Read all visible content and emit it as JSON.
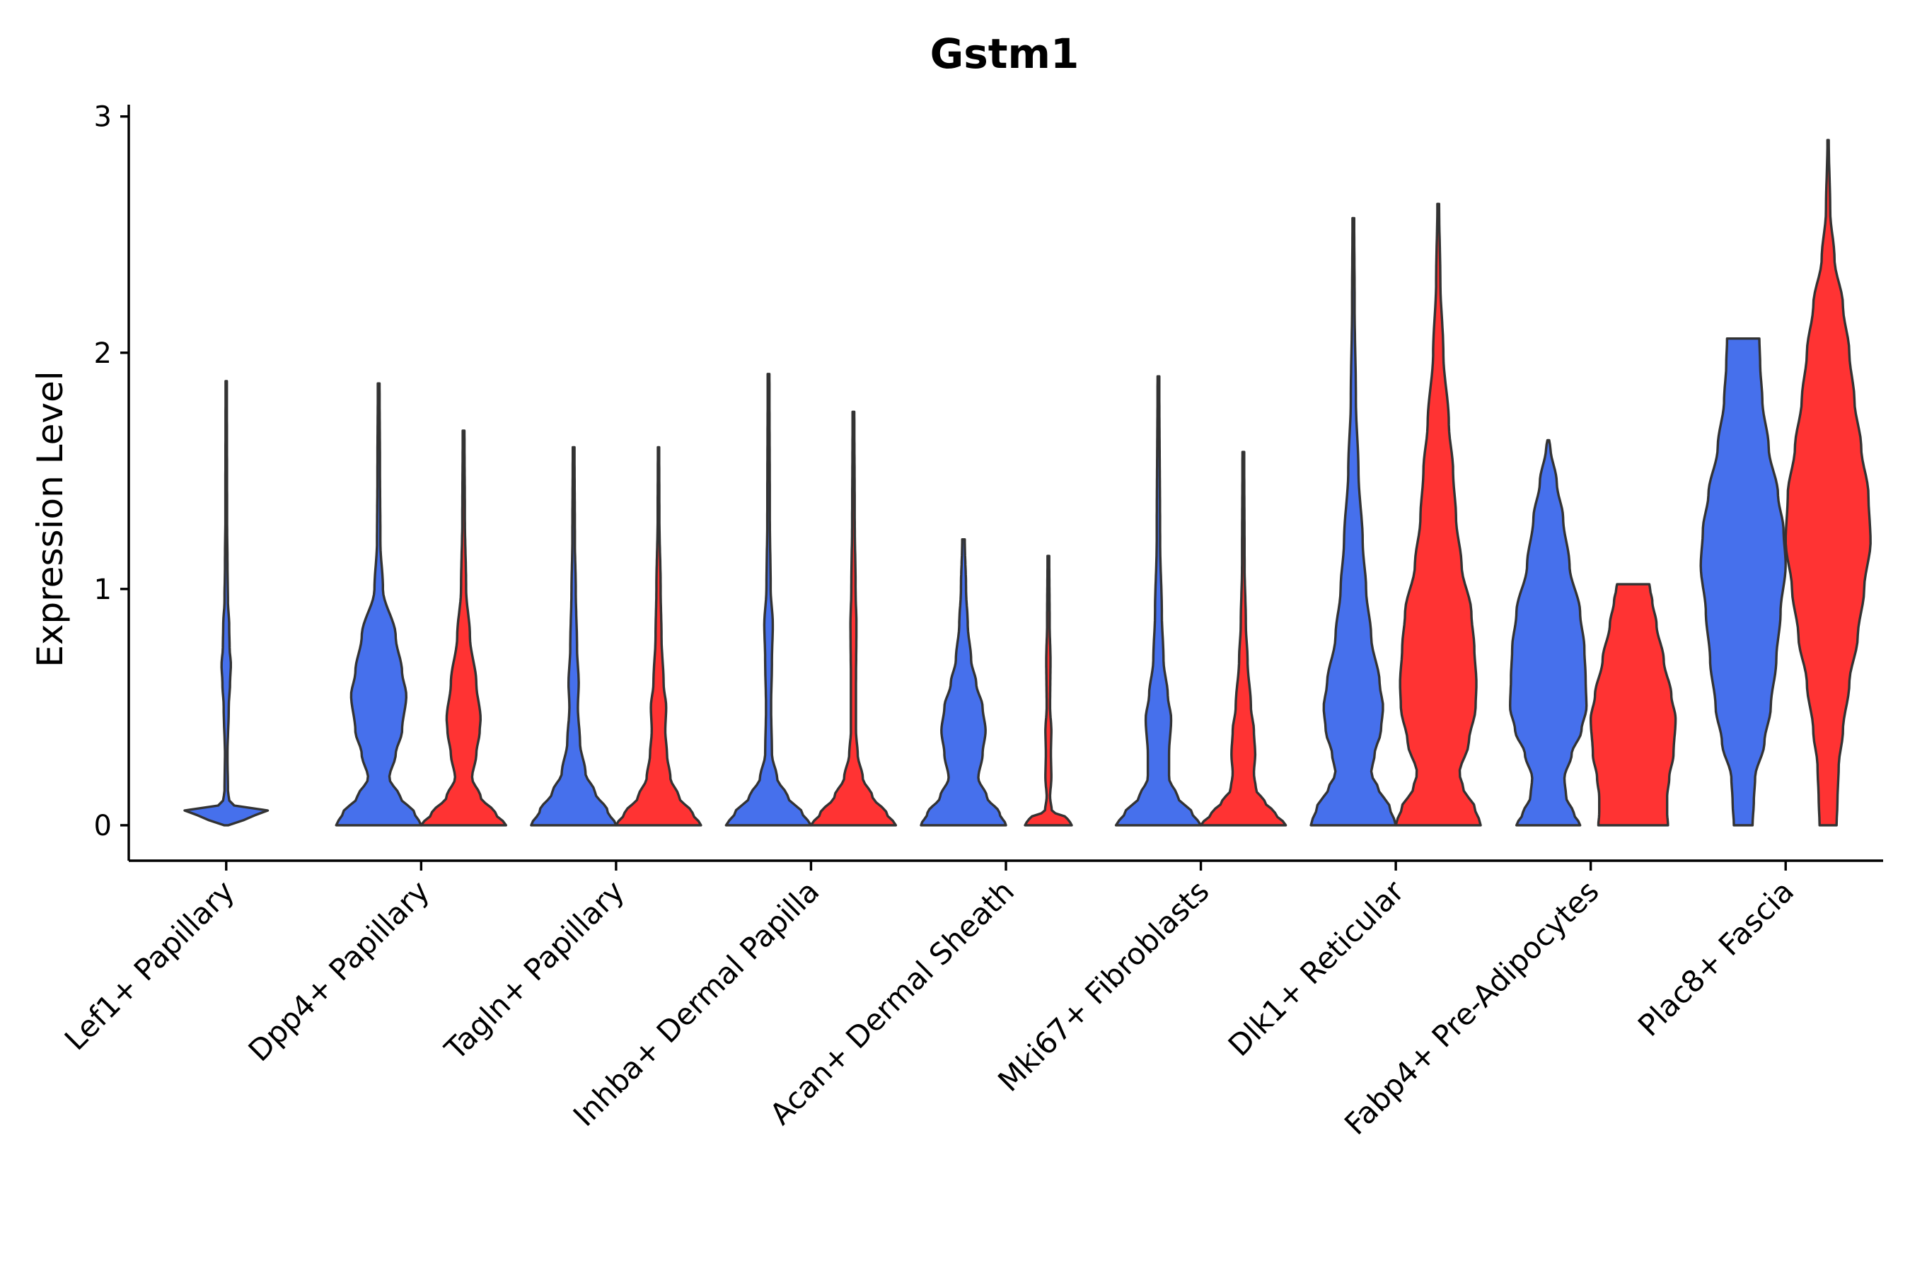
{
  "chart_data": {
    "type": "violin",
    "title": "Gstm1",
    "xlabel": "",
    "ylabel": "Expression Level",
    "ylim": [
      -0.15,
      3.05
    ],
    "yticks": [
      0,
      1,
      2,
      3
    ],
    "grid": false,
    "legend": "none",
    "colors": {
      "blue": "#4670EC",
      "red": "#FF3333"
    },
    "groups": [
      {
        "category": "Lef1+ Papillary",
        "violins": [
          {
            "series": "blue",
            "min": 0,
            "max": 1.88,
            "profile": [
              [
                0,
                0.05
              ],
              [
                0.03,
                0.5
              ],
              [
                0.06,
                1.0
              ],
              [
                0.09,
                0.08
              ],
              [
                0.15,
                0.04
              ],
              [
                0.3,
                0.03
              ],
              [
                0.5,
                0.06
              ],
              [
                0.6,
                0.09
              ],
              [
                0.68,
                0.11
              ],
              [
                0.75,
                0.08
              ],
              [
                0.85,
                0.07
              ],
              [
                0.95,
                0.04
              ],
              [
                1.1,
                0.03
              ],
              [
                1.3,
                0.02
              ],
              [
                1.88,
                0.015
              ]
            ]
          }
        ]
      },
      {
        "category": "Dpp4+ Papillary",
        "violins": [
          {
            "series": "blue",
            "min": 0,
            "max": 1.87,
            "profile": [
              [
                0,
                1.0
              ],
              [
                0.05,
                0.85
              ],
              [
                0.12,
                0.5
              ],
              [
                0.2,
                0.25
              ],
              [
                0.3,
                0.4
              ],
              [
                0.4,
                0.55
              ],
              [
                0.55,
                0.65
              ],
              [
                0.65,
                0.55
              ],
              [
                0.8,
                0.4
              ],
              [
                1.0,
                0.1
              ],
              [
                1.2,
                0.04
              ],
              [
                1.5,
                0.03
              ],
              [
                1.87,
                0.02
              ]
            ]
          },
          {
            "series": "red",
            "min": 0,
            "max": 1.67,
            "profile": [
              [
                0,
                1.0
              ],
              [
                0.05,
                0.75
              ],
              [
                0.12,
                0.4
              ],
              [
                0.2,
                0.2
              ],
              [
                0.3,
                0.3
              ],
              [
                0.4,
                0.38
              ],
              [
                0.45,
                0.4
              ],
              [
                0.6,
                0.3
              ],
              [
                0.8,
                0.15
              ],
              [
                1.0,
                0.06
              ],
              [
                1.3,
                0.03
              ],
              [
                1.67,
                0.02
              ]
            ]
          }
        ]
      },
      {
        "category": "Tagln+ Papillary",
        "violins": [
          {
            "series": "blue",
            "min": 0,
            "max": 1.6,
            "profile": [
              [
                0,
                1.0
              ],
              [
                0.06,
                0.8
              ],
              [
                0.14,
                0.5
              ],
              [
                0.22,
                0.28
              ],
              [
                0.35,
                0.15
              ],
              [
                0.5,
                0.1
              ],
              [
                0.6,
                0.12
              ],
              [
                0.75,
                0.08
              ],
              [
                1.0,
                0.05
              ],
              [
                1.2,
                0.03
              ],
              [
                1.6,
                0.02
              ]
            ]
          },
          {
            "series": "red",
            "min": 0,
            "max": 1.6,
            "profile": [
              [
                0,
                1.0
              ],
              [
                0.05,
                0.8
              ],
              [
                0.12,
                0.48
              ],
              [
                0.2,
                0.28
              ],
              [
                0.3,
                0.2
              ],
              [
                0.4,
                0.16
              ],
              [
                0.5,
                0.18
              ],
              [
                0.6,
                0.12
              ],
              [
                0.8,
                0.07
              ],
              [
                1.0,
                0.05
              ],
              [
                1.3,
                0.02
              ],
              [
                1.6,
                0.015
              ]
            ]
          }
        ]
      },
      {
        "category": "Inhba+ Dermal Papilla",
        "violins": [
          {
            "series": "blue",
            "min": 0,
            "max": 1.91,
            "profile": [
              [
                0,
                1.0
              ],
              [
                0.05,
                0.8
              ],
              [
                0.12,
                0.45
              ],
              [
                0.2,
                0.2
              ],
              [
                0.3,
                0.08
              ],
              [
                0.5,
                0.06
              ],
              [
                0.7,
                0.08
              ],
              [
                0.85,
                0.1
              ],
              [
                1.0,
                0.05
              ],
              [
                1.3,
                0.03
              ],
              [
                1.91,
                0.02
              ]
            ]
          },
          {
            "series": "red",
            "min": 0,
            "max": 1.75,
            "profile": [
              [
                0,
                1.0
              ],
              [
                0.05,
                0.78
              ],
              [
                0.12,
                0.45
              ],
              [
                0.2,
                0.22
              ],
              [
                0.3,
                0.1
              ],
              [
                0.4,
                0.06
              ],
              [
                0.6,
                0.06
              ],
              [
                0.85,
                0.07
              ],
              [
                1.0,
                0.05
              ],
              [
                1.3,
                0.03
              ],
              [
                1.75,
                0.02
              ]
            ]
          }
        ]
      },
      {
        "category": "Acan+ Dermal Sheath",
        "violins": [
          {
            "series": "blue",
            "min": 0,
            "max": 1.21,
            "profile": [
              [
                0,
                1.0
              ],
              [
                0.05,
                0.85
              ],
              [
                0.12,
                0.55
              ],
              [
                0.2,
                0.35
              ],
              [
                0.3,
                0.45
              ],
              [
                0.4,
                0.52
              ],
              [
                0.5,
                0.45
              ],
              [
                0.6,
                0.3
              ],
              [
                0.7,
                0.18
              ],
              [
                0.85,
                0.1
              ],
              [
                1.0,
                0.06
              ],
              [
                1.21,
                0.03
              ]
            ]
          },
          {
            "series": "red",
            "min": 0,
            "max": 1.14,
            "profile": [
              [
                0,
                0.55
              ],
              [
                0.03,
                0.45
              ],
              [
                0.06,
                0.08
              ],
              [
                0.12,
                0.04
              ],
              [
                0.2,
                0.07
              ],
              [
                0.3,
                0.06
              ],
              [
                0.4,
                0.07
              ],
              [
                0.5,
                0.04
              ],
              [
                0.7,
                0.05
              ],
              [
                0.85,
                0.03
              ],
              [
                1.14,
                0.02
              ]
            ]
          }
        ]
      },
      {
        "category": "Mki67+ Fibroblasts",
        "violins": [
          {
            "series": "blue",
            "min": 0,
            "max": 1.9,
            "profile": [
              [
                0,
                1.0
              ],
              [
                0.05,
                0.8
              ],
              [
                0.12,
                0.45
              ],
              [
                0.2,
                0.25
              ],
              [
                0.3,
                0.25
              ],
              [
                0.45,
                0.3
              ],
              [
                0.55,
                0.22
              ],
              [
                0.7,
                0.12
              ],
              [
                0.9,
                0.08
              ],
              [
                1.2,
                0.04
              ],
              [
                1.9,
                0.02
              ]
            ]
          },
          {
            "series": "red",
            "min": 0,
            "max": 1.58,
            "profile": [
              [
                0,
                1.0
              ],
              [
                0.05,
                0.75
              ],
              [
                0.1,
                0.5
              ],
              [
                0.15,
                0.3
              ],
              [
                0.22,
                0.25
              ],
              [
                0.3,
                0.28
              ],
              [
                0.4,
                0.25
              ],
              [
                0.5,
                0.18
              ],
              [
                0.7,
                0.1
              ],
              [
                0.85,
                0.06
              ],
              [
                1.1,
                0.03
              ],
              [
                1.58,
                0.02
              ]
            ]
          }
        ]
      },
      {
        "category": "Dlk1+ Reticular",
        "violins": [
          {
            "series": "blue",
            "min": 0,
            "max": 2.57,
            "profile": [
              [
                0,
                1.0
              ],
              [
                0.08,
                0.85
              ],
              [
                0.15,
                0.6
              ],
              [
                0.22,
                0.42
              ],
              [
                0.3,
                0.5
              ],
              [
                0.4,
                0.65
              ],
              [
                0.5,
                0.7
              ],
              [
                0.6,
                0.62
              ],
              [
                0.8,
                0.42
              ],
              [
                1.0,
                0.3
              ],
              [
                1.2,
                0.22
              ],
              [
                1.5,
                0.12
              ],
              [
                1.8,
                0.06
              ],
              [
                2.2,
                0.03
              ],
              [
                2.57,
                0.02
              ]
            ]
          },
          {
            "series": "red",
            "min": 0,
            "max": 2.63,
            "profile": [
              [
                0,
                1.0
              ],
              [
                0.08,
                0.85
              ],
              [
                0.15,
                0.6
              ],
              [
                0.22,
                0.5
              ],
              [
                0.35,
                0.72
              ],
              [
                0.5,
                0.88
              ],
              [
                0.6,
                0.9
              ],
              [
                0.75,
                0.85
              ],
              [
                0.9,
                0.78
              ],
              [
                1.1,
                0.55
              ],
              [
                1.3,
                0.42
              ],
              [
                1.5,
                0.35
              ],
              [
                1.7,
                0.25
              ],
              [
                2.0,
                0.12
              ],
              [
                2.3,
                0.05
              ],
              [
                2.63,
                0.02
              ]
            ]
          }
        ]
      },
      {
        "category": "Fabp4+ Pre-Adipocytes",
        "violins": [
          {
            "series": "blue",
            "min": 0,
            "max": 1.63,
            "profile": [
              [
                0,
                0.75
              ],
              [
                0.05,
                0.6
              ],
              [
                0.12,
                0.42
              ],
              [
                0.2,
                0.38
              ],
              [
                0.3,
                0.55
              ],
              [
                0.4,
                0.78
              ],
              [
                0.5,
                0.9
              ],
              [
                0.62,
                0.88
              ],
              [
                0.75,
                0.85
              ],
              [
                0.9,
                0.75
              ],
              [
                1.1,
                0.5
              ],
              [
                1.3,
                0.35
              ],
              [
                1.45,
                0.2
              ],
              [
                1.6,
                0.05
              ],
              [
                1.63,
                0.02
              ]
            ]
          },
          {
            "series": "red",
            "min": 0,
            "max": 1.02,
            "profile": [
              [
                0,
                0.82
              ],
              [
                0.05,
                0.8
              ],
              [
                0.12,
                0.8
              ],
              [
                0.2,
                0.85
              ],
              [
                0.3,
                0.95
              ],
              [
                0.45,
                1.0
              ],
              [
                0.55,
                0.9
              ],
              [
                0.7,
                0.72
              ],
              [
                0.85,
                0.55
              ],
              [
                0.95,
                0.45
              ],
              [
                1.0,
                0.4
              ],
              [
                1.02,
                0.38
              ]
            ]
          }
        ]
      },
      {
        "category": "Plac8+ Fascia",
        "violins": [
          {
            "series": "blue",
            "min": 0,
            "max": 2.06,
            "profile": [
              [
                0,
                0.22
              ],
              [
                0.1,
                0.25
              ],
              [
                0.2,
                0.28
              ],
              [
                0.35,
                0.5
              ],
              [
                0.5,
                0.65
              ],
              [
                0.7,
                0.78
              ],
              [
                0.9,
                0.88
              ],
              [
                1.1,
                1.0
              ],
              [
                1.25,
                0.95
              ],
              [
                1.4,
                0.82
              ],
              [
                1.6,
                0.6
              ],
              [
                1.8,
                0.45
              ],
              [
                1.95,
                0.4
              ],
              [
                2.06,
                0.38
              ]
            ]
          },
          {
            "series": "red",
            "min": 0,
            "max": 2.9,
            "profile": [
              [
                0,
                0.2
              ],
              [
                0.1,
                0.22
              ],
              [
                0.25,
                0.25
              ],
              [
                0.4,
                0.35
              ],
              [
                0.6,
                0.5
              ],
              [
                0.8,
                0.7
              ],
              [
                1.0,
                0.85
              ],
              [
                1.2,
                1.0
              ],
              [
                1.4,
                0.95
              ],
              [
                1.6,
                0.78
              ],
              [
                1.8,
                0.62
              ],
              [
                2.0,
                0.5
              ],
              [
                2.2,
                0.35
              ],
              [
                2.4,
                0.15
              ],
              [
                2.6,
                0.05
              ],
              [
                2.9,
                0.015
              ]
            ]
          }
        ]
      }
    ]
  }
}
